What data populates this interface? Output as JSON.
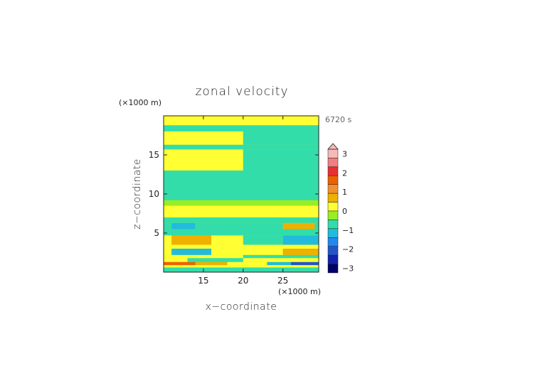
{
  "chart_data": {
    "type": "heatmap",
    "title": "zonal velocity",
    "xlabel": "x−coordinate",
    "ylabel": "z−coordinate",
    "x_unit_label": "(×1000 m)",
    "y_unit_label": "(×1000 m)",
    "time_label": "6720 s",
    "xlim": [
      10,
      29.5
    ],
    "ylim": [
      0,
      20
    ],
    "x_ticks": [
      15,
      20,
      25
    ],
    "y_ticks": [
      5,
      10,
      15
    ],
    "colorbar": {
      "tick_labels": [
        "3",
        "2",
        "1",
        "0",
        "−1",
        "−2",
        "−3"
      ],
      "tick_values": [
        3,
        2,
        1,
        0,
        -1,
        -2,
        -3
      ],
      "levels": [
        3.25,
        2.75,
        2.25,
        1.75,
        1.25,
        0.75,
        0.25,
        -0.25,
        -0.75,
        -1.25,
        -1.75,
        -2.25,
        -2.75,
        -3.25
      ],
      "colors": [
        "#f6b8b8",
        "#f08080",
        "#e83030",
        "#f06000",
        "#f09030",
        "#f0b000",
        "#ffff33",
        "#99ee22",
        "#33ddaa",
        "#22bbdd",
        "#2288ee",
        "#2255cc",
        "#1122aa",
        "#000066"
      ],
      "extend_top": true
    },
    "field": [
      {
        "z": [
          0,
          0.6
        ],
        "x": [
          10,
          29.5
        ],
        "value": -0.5
      },
      {
        "z": [
          0.6,
          0.9
        ],
        "x": [
          10,
          29.5
        ],
        "value": 0.4
      },
      {
        "z": [
          0.9,
          1.3
        ],
        "x": [
          10,
          14
        ],
        "value": 1.9
      },
      {
        "z": [
          0.9,
          1.3
        ],
        "x": [
          14,
          18
        ],
        "value": 1.2
      },
      {
        "z": [
          0.9,
          1.3
        ],
        "x": [
          18,
          23
        ],
        "value": 0.4
      },
      {
        "z": [
          0.9,
          1.3
        ],
        "x": [
          23,
          26
        ],
        "value": -0.9
      },
      {
        "z": [
          0.9,
          1.3
        ],
        "x": [
          26,
          29.5
        ],
        "value": -2.1
      },
      {
        "z": [
          1.3,
          1.8
        ],
        "x": [
          10,
          13
        ],
        "value": 0.6
      },
      {
        "z": [
          1.3,
          1.8
        ],
        "x": [
          13,
          20
        ],
        "value": -0.4
      },
      {
        "z": [
          1.3,
          1.8
        ],
        "x": [
          20,
          29.5
        ],
        "value": 0.3
      },
      {
        "z": [
          1.8,
          2.2
        ],
        "x": [
          10,
          20
        ],
        "value": 0.3
      },
      {
        "z": [
          1.8,
          2.2
        ],
        "x": [
          20,
          29.5
        ],
        "value": -0.4
      },
      {
        "z": [
          2.2,
          3.0
        ],
        "x": [
          10,
          11
        ],
        "value": 0.3
      },
      {
        "z": [
          2.2,
          3.0
        ],
        "x": [
          11,
          16
        ],
        "value": -0.8
      },
      {
        "z": [
          2.2,
          3.0
        ],
        "x": [
          16,
          21
        ],
        "value": 0.5
      },
      {
        "z": [
          2.2,
          3.0
        ],
        "x": [
          21,
          25
        ],
        "value": 0.3
      },
      {
        "z": [
          2.2,
          3.0
        ],
        "x": [
          25,
          29.5
        ],
        "value": 1.0
      },
      {
        "z": [
          3.0,
          3.5
        ],
        "x": [
          10,
          29.5
        ],
        "value": 0.3
      },
      {
        "z": [
          3.5,
          4.7
        ],
        "x": [
          10,
          11
        ],
        "value": 0.4
      },
      {
        "z": [
          3.5,
          4.7
        ],
        "x": [
          11,
          16
        ],
        "value": 0.9
      },
      {
        "z": [
          3.5,
          4.7
        ],
        "x": [
          16,
          20
        ],
        "value": 0.6
      },
      {
        "z": [
          3.5,
          4.7
        ],
        "x": [
          20,
          25
        ],
        "value": -0.4
      },
      {
        "z": [
          3.5,
          4.7
        ],
        "x": [
          25,
          29.5
        ],
        "value": -0.8
      },
      {
        "z": [
          4.7,
          5.5
        ],
        "x": [
          10,
          29.5
        ],
        "value": -0.4
      },
      {
        "z": [
          5.5,
          6.3
        ],
        "x": [
          10,
          11
        ],
        "value": -0.3
      },
      {
        "z": [
          5.5,
          6.3
        ],
        "x": [
          11,
          14
        ],
        "value": -0.9
      },
      {
        "z": [
          5.5,
          6.3
        ],
        "x": [
          14,
          25
        ],
        "value": -0.3
      },
      {
        "z": [
          5.5,
          6.3
        ],
        "x": [
          25,
          29
        ],
        "value": 0.8
      },
      {
        "z": [
          5.5,
          6.3
        ],
        "x": [
          29,
          29.5
        ],
        "value": -0.3
      },
      {
        "z": [
          6.3,
          7.0
        ],
        "x": [
          10,
          29.5
        ],
        "value": -0.4
      },
      {
        "z": [
          7.0,
          8.5
        ],
        "x": [
          10,
          29.5
        ],
        "value": 0.3
      },
      {
        "z": [
          8.5,
          9.2
        ],
        "x": [
          10,
          29.5
        ],
        "value": 0.2
      },
      {
        "z": [
          9.2,
          11.5
        ],
        "x": [
          10,
          29.5
        ],
        "value": -0.4
      },
      {
        "z": [
          11.5,
          13.0
        ],
        "x": [
          10,
          29.5
        ],
        "value": -0.3
      },
      {
        "z": [
          13.0,
          15.7
        ],
        "x": [
          10,
          20
        ],
        "value": 0.3
      },
      {
        "z": [
          13.0,
          15.7
        ],
        "x": [
          20,
          29.5
        ],
        "value": -0.3
      },
      {
        "z": [
          15.7,
          16.3
        ],
        "x": [
          10,
          29.5
        ],
        "value": -0.3
      },
      {
        "z": [
          16.3,
          18.0
        ],
        "x": [
          10,
          20
        ],
        "value": 0.3
      },
      {
        "z": [
          16.3,
          18.0
        ],
        "x": [
          20,
          29.5
        ],
        "value": -0.3
      },
      {
        "z": [
          18.0,
          18.8
        ],
        "x": [
          10,
          29.5
        ],
        "value": -0.3
      },
      {
        "z": [
          18.8,
          20
        ],
        "x": [
          10,
          29.5
        ],
        "value": 0.3
      }
    ]
  }
}
